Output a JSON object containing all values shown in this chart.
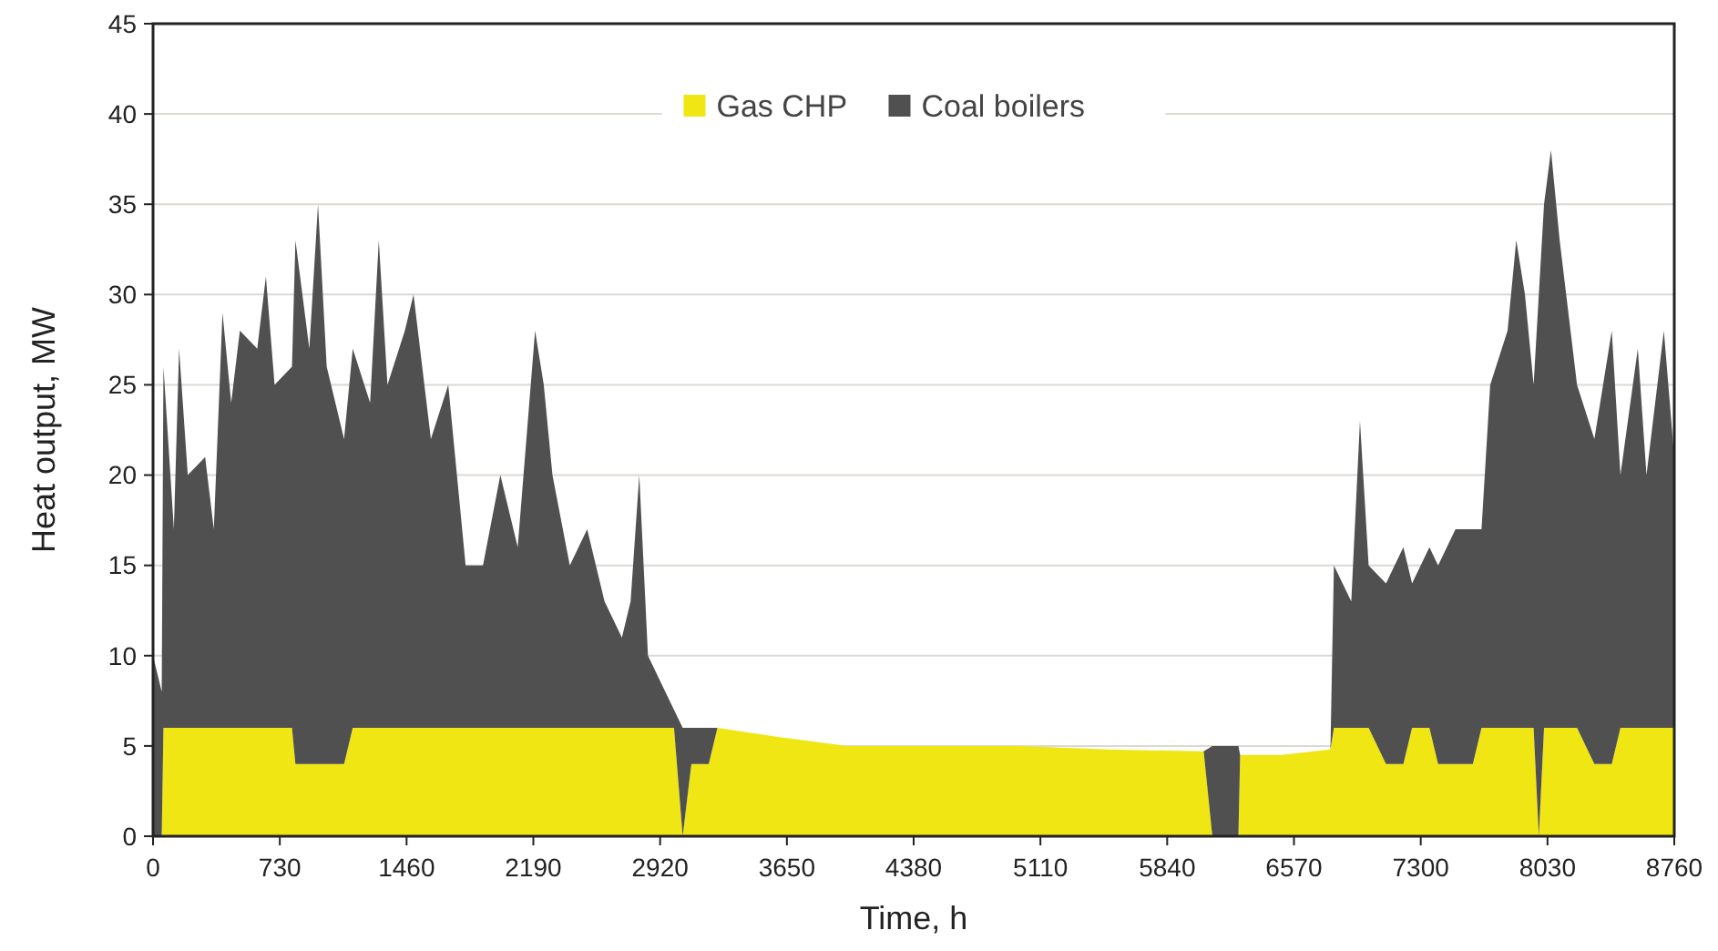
{
  "chart_data": {
    "type": "area",
    "stacked": true,
    "xlabel": "Time, h",
    "ylabel": "Heat output, MW",
    "x": [
      0,
      50,
      60,
      120,
      150,
      200,
      300,
      350,
      400,
      450,
      500,
      600,
      650,
      700,
      800,
      820,
      900,
      950,
      1000,
      1100,
      1150,
      1250,
      1300,
      1350,
      1450,
      1500,
      1600,
      1700,
      1800,
      1900,
      2000,
      2100,
      2200,
      2250,
      2300,
      2400,
      2500,
      2600,
      2700,
      2750,
      2800,
      2850,
      2950,
      3000,
      3050,
      3100,
      3200,
      3250,
      3600,
      4000,
      4380,
      5000,
      5500,
      6050,
      6100,
      6250,
      6260,
      6500,
      6780,
      6800,
      6900,
      6950,
      7000,
      7100,
      7200,
      7250,
      7350,
      7400,
      7500,
      7600,
      7650,
      7700,
      7800,
      7850,
      7900,
      7950,
      7980,
      8010,
      8050,
      8100,
      8200,
      8300,
      8400,
      8450,
      8550,
      8600,
      8700,
      8760
    ],
    "series": [
      {
        "name": "Gas CHP",
        "color": "#f0e614",
        "values": [
          0,
          0,
          6,
          6,
          6,
          6,
          6,
          6,
          6,
          6,
          6,
          6,
          6,
          6,
          6,
          4,
          4,
          4,
          4,
          4,
          6,
          6,
          6,
          6,
          6,
          6,
          6,
          6,
          6,
          6,
          6,
          6,
          6,
          6,
          6,
          6,
          6,
          6,
          6,
          6,
          6,
          6,
          6,
          6,
          0,
          4,
          4,
          6,
          5.5,
          5,
          5,
          5,
          4.8,
          4.7,
          0,
          0,
          4.5,
          4.5,
          4.8,
          6,
          6,
          6,
          6,
          4,
          4,
          6,
          6,
          4,
          4,
          4,
          6,
          6,
          6,
          6,
          6,
          6,
          0,
          6,
          6,
          6,
          6,
          4,
          4,
          6,
          6,
          6,
          6,
          6
        ]
      },
      {
        "name": "Coal boilers",
        "color": "#505050",
        "values": [
          10,
          8,
          20,
          11,
          21,
          14,
          15,
          11,
          23,
          18,
          22,
          21,
          25,
          19,
          20,
          29,
          23,
          31,
          22,
          18,
          21,
          18,
          27,
          19,
          22,
          24,
          16,
          19,
          9,
          9,
          14,
          10,
          22,
          19,
          14,
          9,
          11,
          7,
          5,
          7,
          14,
          4,
          2,
          1,
          6,
          2,
          2,
          0,
          0,
          0,
          0,
          0,
          0,
          0,
          5,
          5,
          0,
          0,
          0,
          9,
          7,
          17,
          9,
          10,
          12,
          8,
          10,
          11,
          13,
          13,
          11,
          19,
          22,
          27,
          24,
          19,
          30,
          29,
          32,
          27,
          19,
          18,
          24,
          14,
          21,
          14,
          22,
          15
        ]
      }
    ],
    "xlim": [
      0,
      8760
    ],
    "xticks": [
      0,
      730,
      1460,
      2190,
      2920,
      3650,
      4380,
      5110,
      5840,
      6570,
      7300,
      8030,
      8760
    ],
    "ylim": [
      0,
      45
    ],
    "yticks": [
      0,
      5,
      10,
      15,
      20,
      25,
      30,
      35,
      40,
      45
    ],
    "grid": "y",
    "legend": "top"
  }
}
